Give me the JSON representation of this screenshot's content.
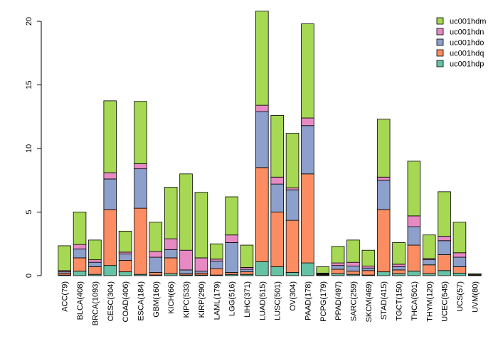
{
  "chart_data": {
    "type": "bar",
    "stacked": true,
    "title": "",
    "xlabel": "",
    "ylabel": "",
    "ylim": [
      0,
      20.8
    ],
    "yticks": [
      0,
      5,
      10,
      15,
      20
    ],
    "legend_position": "top-right",
    "categories": [
      "ACC(79)",
      "BLCA(408)",
      "BRCA(1093)",
      "CESC(304)",
      "COAD(406)",
      "ESCA(184)",
      "GBM(160)",
      "KICH(66)",
      "KIPC(533)",
      "KIRP(290)",
      "LAML(179)",
      "LGG(516)",
      "LIHC(371)",
      "LUAD(515)",
      "LUSC(501)",
      "OV(304)",
      "PAAD(178)",
      "PCPG(179)",
      "PPAD(497)",
      "SARC(259)",
      "SKCM(469)",
      "STAD(415)",
      "TGCT(150)",
      "THCA(501)",
      "THYM(120)",
      "UCEC(545)",
      "UCS(57)",
      "UVM(80)"
    ],
    "series": [
      {
        "name": "uc001hdp",
        "color": "#66c2a5",
        "values": [
          0.05,
          0.35,
          0.1,
          0.8,
          0.3,
          0.1,
          0.05,
          0.15,
          0.05,
          0.05,
          0.05,
          0.1,
          0.1,
          1.1,
          0.7,
          0.25,
          1.0,
          0.05,
          0.15,
          0.1,
          0.05,
          0.3,
          0.15,
          0.35,
          0.15,
          0.4,
          0.2,
          0.02
        ]
      },
      {
        "name": "uc001hdq",
        "color": "#fc8d62",
        "values": [
          0.15,
          1.05,
          0.6,
          4.4,
          0.9,
          5.2,
          0.2,
          1.25,
          0.1,
          0.15,
          0.5,
          0.15,
          0.2,
          7.4,
          4.3,
          4.1,
          7.0,
          0.05,
          0.35,
          0.25,
          0.35,
          4.9,
          0.3,
          2.05,
          0.7,
          1.25,
          0.5,
          0.02
        ]
      },
      {
        "name": "uc001hdo",
        "color": "#8da0cb",
        "values": [
          0.1,
          0.7,
          0.35,
          2.4,
          0.5,
          3.1,
          1.2,
          0.65,
          0.3,
          0.15,
          0.6,
          2.35,
          0.2,
          4.4,
          2.2,
          2.4,
          3.8,
          0.05,
          0.3,
          0.4,
          0.2,
          2.3,
          0.25,
          1.45,
          0.4,
          1.1,
          0.75,
          0.02
        ]
      },
      {
        "name": "uc001hdn",
        "color": "#e78ac3",
        "values": [
          0.1,
          0.35,
          0.2,
          0.5,
          0.15,
          0.4,
          0.45,
          0.85,
          1.55,
          1.05,
          0.15,
          0.6,
          0.15,
          0.5,
          0.55,
          0.15,
          0.6,
          0.05,
          0.2,
          0.3,
          0.15,
          0.25,
          0.2,
          0.85,
          0.1,
          0.35,
          0.35,
          0.02
        ]
      },
      {
        "name": "uc001hdm",
        "color": "#a6d854",
        "values": [
          1.95,
          2.55,
          1.55,
          5.65,
          1.65,
          4.9,
          2.3,
          4.05,
          6.0,
          5.15,
          1.2,
          3.0,
          1.75,
          7.4,
          4.85,
          4.3,
          7.4,
          0.5,
          1.3,
          1.75,
          1.25,
          4.55,
          1.7,
          4.3,
          1.85,
          3.5,
          2.4,
          0.07
        ]
      }
    ]
  }
}
